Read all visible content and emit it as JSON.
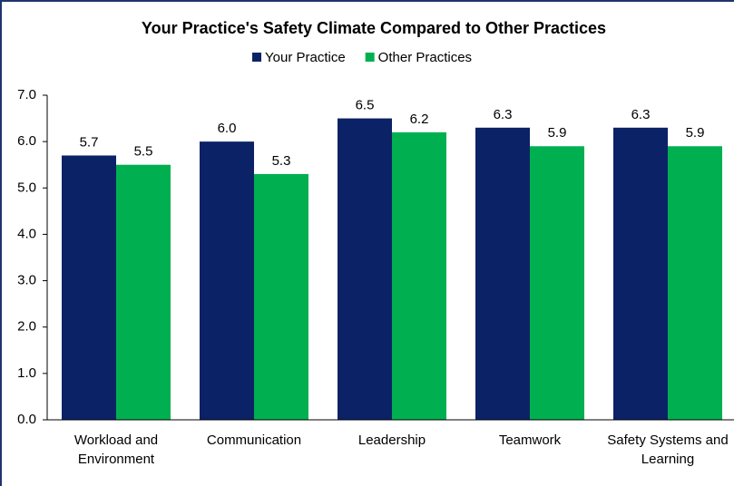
{
  "chart_data": {
    "type": "bar",
    "title": "Your Practice's Safety Climate Compared to Other Practices",
    "categories": [
      "Workload and Environment",
      "Communication",
      "Leadership",
      "Teamwork",
      "Safety Systems and Learning"
    ],
    "series": [
      {
        "name": "Your Practice",
        "color": "#0c2266",
        "values": [
          5.7,
          6.0,
          6.5,
          6.3,
          6.3
        ],
        "value_labels": [
          "5.7",
          "6.0",
          "6.5",
          "6.3",
          "6.3"
        ]
      },
      {
        "name": "Other Practices",
        "color": "#00b050",
        "values": [
          5.5,
          5.3,
          6.2,
          5.9,
          5.9
        ],
        "value_labels": [
          "5.5",
          "5.3",
          "6.2",
          "5.9",
          "5.9"
        ]
      }
    ],
    "ylim": [
      0,
      7
    ],
    "yticks": [
      {
        "value": 0,
        "label": "0.0"
      },
      {
        "value": 1,
        "label": "1.0"
      },
      {
        "value": 2,
        "label": "2.0"
      },
      {
        "value": 3,
        "label": "3.0"
      },
      {
        "value": 4,
        "label": "4.0"
      },
      {
        "value": 5,
        "label": "5.0"
      },
      {
        "value": 6,
        "label": "6.0"
      },
      {
        "value": 7,
        "label": "7.0"
      }
    ],
    "grid": false,
    "legend": "top"
  }
}
